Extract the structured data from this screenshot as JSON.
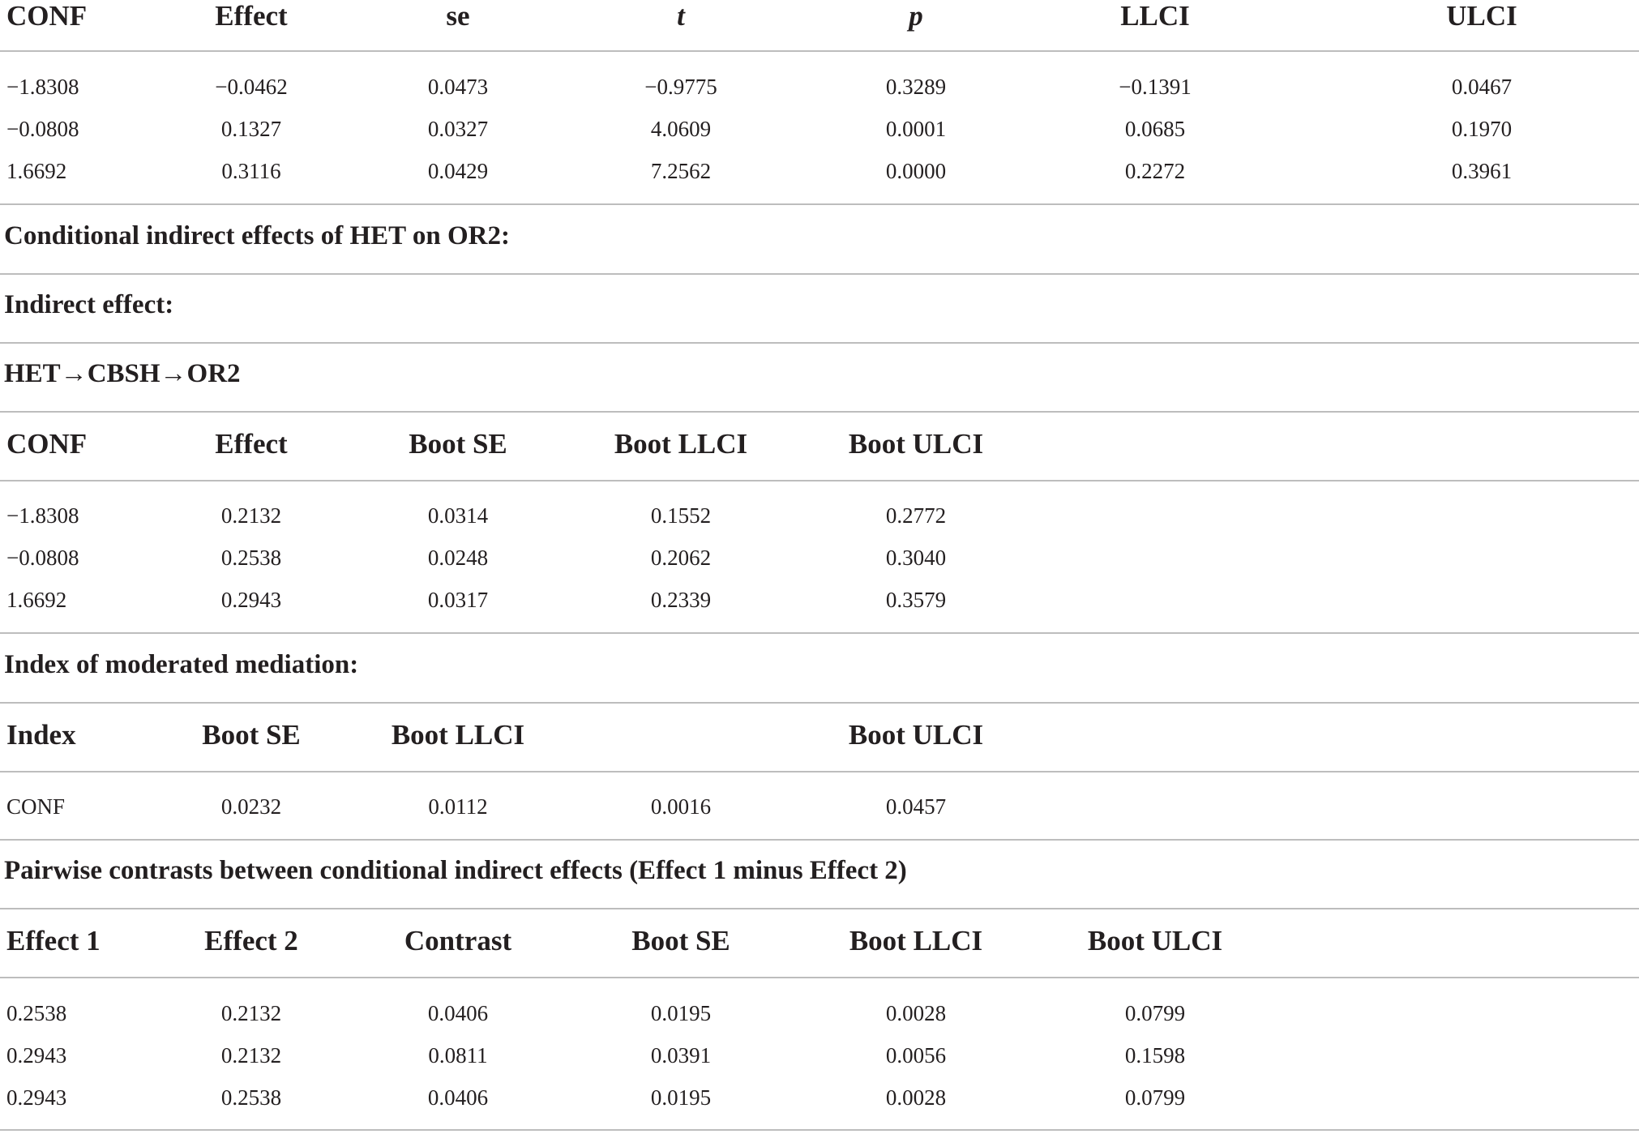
{
  "table1": {
    "headers": [
      "CONF",
      "Effect",
      "se",
      "t",
      "p",
      "LLCI",
      "ULCI"
    ],
    "rows": [
      [
        "−1.8308",
        "−0.0462",
        "0.0473",
        "−0.9775",
        "0.3289",
        "−0.1391",
        "0.0467"
      ],
      [
        "−0.0808",
        "0.1327",
        "0.0327",
        "4.0609",
        "0.0001",
        "0.0685",
        "0.1970"
      ],
      [
        "1.6692",
        "0.3116",
        "0.0429",
        "7.2562",
        "0.0000",
        "0.2272",
        "0.3961"
      ]
    ]
  },
  "sections": {
    "conditional_indirect": "Conditional indirect effects of HET on OR2:",
    "indirect_effect": "Indirect effect:",
    "path": "HET→CBSH→OR2",
    "index_of_moderated_mediation": "Index of moderated mediation:",
    "pairwise_contrasts": "Pairwise contrasts between conditional indirect effects (Effect 1 minus Effect 2)"
  },
  "table2": {
    "headers": [
      "CONF",
      "Effect",
      "Boot SE",
      "Boot LLCI",
      "Boot ULCI"
    ],
    "rows": [
      [
        "−1.8308",
        "0.2132",
        "0.0314",
        "0.1552",
        "0.2772"
      ],
      [
        "−0.0808",
        "0.2538",
        "0.0248",
        "0.2062",
        "0.3040"
      ],
      [
        "1.6692",
        "0.2943",
        "0.0317",
        "0.2339",
        "0.3579"
      ]
    ]
  },
  "table3": {
    "headers": [
      "Index",
      "Boot SE",
      "Boot LLCI",
      "Boot ULCI"
    ],
    "rows": [
      [
        "CONF",
        "0.0232",
        "0.0112",
        "0.0016",
        "0.0457"
      ]
    ]
  },
  "table4": {
    "headers": [
      "Effect 1",
      "Effect 2",
      "Contrast",
      "Boot SE",
      "Boot LLCI",
      "Boot ULCI"
    ],
    "rows": [
      [
        "0.2538",
        "0.2132",
        "0.0406",
        "0.0195",
        "0.0028",
        "0.0799"
      ],
      [
        "0.2943",
        "0.2132",
        "0.0811",
        "0.0391",
        "0.0056",
        "0.1598"
      ],
      [
        "0.2943",
        "0.2538",
        "0.0406",
        "0.0195",
        "0.0028",
        "0.0799"
      ]
    ]
  }
}
